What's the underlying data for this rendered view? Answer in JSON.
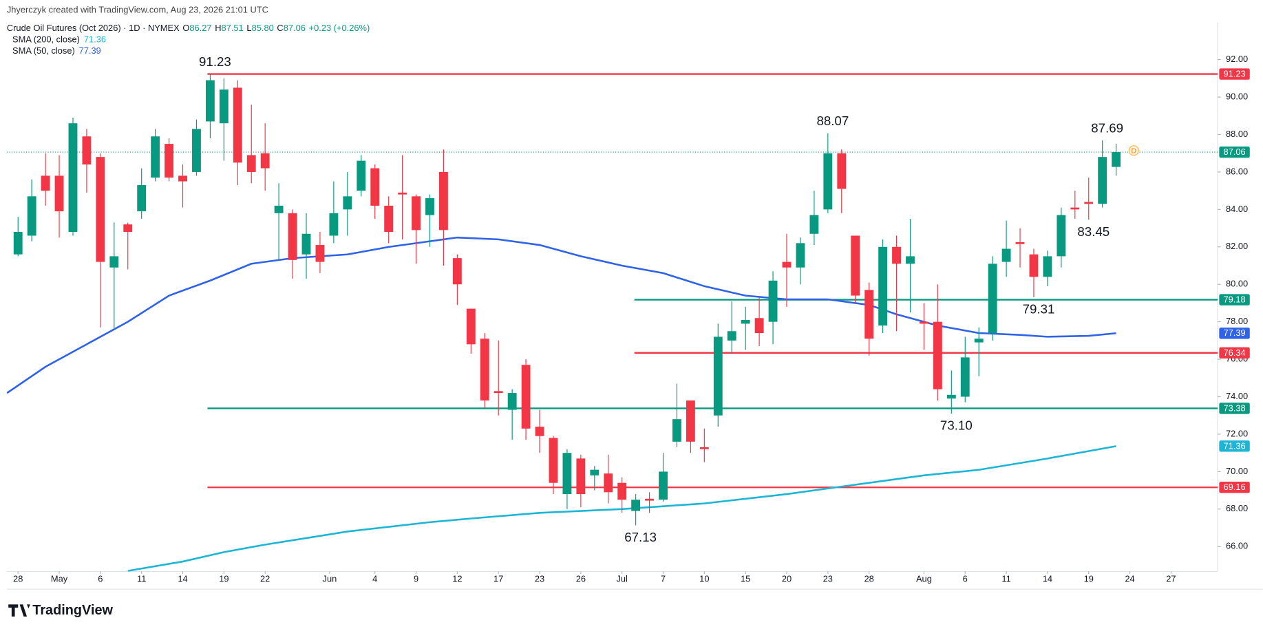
{
  "header": {
    "credit": "Jhyerczyk created with TradingView.com, Aug 23, 2026 21:01 UTC"
  },
  "legend": {
    "title": "Crude Oil Futures (Oct 2026) · 1D · NYMEX",
    "fields": [
      {
        "key": "O",
        "value": "86.27"
      },
      {
        "key": "H",
        "value": "87.51"
      },
      {
        "key": "L",
        "value": "85.80"
      },
      {
        "key": "C",
        "value": "87.06"
      }
    ],
    "change": "+0.23 (+0.26%)"
  },
  "chart_data": {
    "type": "candlestick",
    "up_color": "#089981",
    "down_color": "#f23645",
    "open": [
      81.6,
      82.6,
      85.8,
      85.8,
      82.8,
      87.9,
      86.8,
      80.9,
      83.2,
      83.9,
      85.7,
      87.5,
      85.8,
      86.0,
      88.7,
      88.6,
      90.5,
      86.9,
      87.0,
      83.8,
      83.8,
      81.6,
      82.1,
      82.6,
      84.0,
      85.0,
      86.2,
      84.2,
      84.9,
      84.7,
      83.7,
      86.0,
      81.4,
      78.7,
      77.1,
      74.3,
      73.3,
      75.7,
      72.4,
      71.8,
      68.8,
      70.7,
      69.8,
      69.9,
      69.4,
      67.9,
      68.55,
      68.5,
      71.6,
      73.8,
      71.3,
      73.0,
      77.0,
      77.9,
      78.2,
      78.0,
      81.2,
      80.9,
      82.7,
      84.0,
      87.0,
      82.6,
      79.7,
      77.8,
      82.0,
      81.1,
      78.0,
      78.0,
      73.9,
      74.0,
      76.9,
      77.4,
      81.2,
      82.25,
      81.6,
      80.4,
      81.5,
      84.1,
      84.4,
      84.3,
      86.27
    ],
    "high": [
      83.6,
      85.6,
      87.0,
      86.9,
      88.9,
      88.3,
      87.0,
      83.3,
      83.3,
      86.2,
      88.3,
      87.8,
      86.4,
      88.8,
      91.23,
      91.0,
      90.9,
      89.6,
      88.6,
      85.4,
      84.0,
      83.8,
      82.8,
      85.5,
      86.0,
      86.9,
      86.4,
      84.7,
      86.9,
      84.8,
      84.8,
      87.2,
      81.6,
      78.7,
      77.4,
      77.0,
      74.4,
      76.0,
      73.3,
      71.9,
      71.2,
      70.9,
      70.3,
      70.9,
      69.7,
      68.8,
      68.9,
      71.0,
      74.7,
      73.8,
      72.3,
      77.9,
      79.1,
      78.8,
      79.3,
      80.7,
      82.7,
      82.5,
      85.0,
      88.07,
      87.2,
      82.6,
      80.1,
      82.4,
      82.6,
      83.5,
      79.0,
      80.0,
      75.4,
      77.2,
      77.7,
      81.5,
      83.4,
      83.0,
      81.9,
      81.8,
      84.1,
      85.0,
      85.7,
      87.69,
      87.51
    ],
    "low": [
      81.5,
      82.3,
      84.2,
      82.5,
      82.6,
      84.9,
      77.7,
      77.6,
      80.8,
      83.5,
      85.5,
      85.5,
      84.1,
      85.8,
      87.8,
      86.6,
      85.3,
      85.4,
      85.0,
      81.3,
      80.3,
      80.3,
      80.6,
      82.2,
      82.6,
      84.7,
      83.5,
      82.2,
      82.4,
      81.1,
      82.0,
      81.0,
      78.9,
      76.3,
      73.4,
      73.0,
      71.7,
      71.7,
      71.0,
      68.8,
      68.0,
      68.1,
      69.0,
      68.3,
      67.8,
      67.13,
      67.8,
      68.4,
      71.3,
      71.0,
      70.5,
      72.4,
      76.3,
      76.5,
      76.7,
      76.8,
      78.8,
      80.0,
      82.1,
      83.8,
      83.8,
      79.0,
      76.2,
      77.4,
      77.5,
      78.5,
      76.5,
      73.8,
      73.1,
      73.7,
      75.1,
      77.0,
      80.4,
      80.9,
      79.31,
      79.9,
      80.9,
      83.5,
      83.45,
      84.1,
      85.8
    ],
    "close": [
      82.8,
      84.7,
      85.0,
      83.9,
      88.6,
      86.4,
      81.2,
      81.5,
      82.8,
      85.3,
      87.9,
      85.7,
      85.5,
      88.3,
      90.9,
      90.4,
      86.5,
      86.0,
      86.2,
      84.2,
      81.3,
      82.7,
      81.2,
      83.8,
      84.7,
      86.6,
      84.2,
      82.8,
      84.8,
      82.9,
      84.6,
      82.9,
      80.0,
      76.8,
      73.8,
      74.2,
      74.2,
      72.3,
      71.9,
      69.4,
      71.0,
      68.8,
      70.1,
      68.9,
      68.5,
      68.5,
      68.45,
      70.0,
      72.8,
      71.6,
      71.2,
      77.2,
      77.5,
      78.1,
      77.4,
      80.2,
      80.9,
      82.2,
      83.7,
      87.0,
      85.1,
      79.4,
      77.1,
      82.0,
      81.1,
      81.5,
      77.9,
      74.4,
      74.1,
      76.1,
      77.1,
      81.1,
      81.9,
      82.15,
      80.4,
      81.5,
      83.7,
      84.0,
      84.3,
      86.8,
      87.06
    ],
    "series": [
      {
        "name": "SMA (200, close)",
        "color": "#1cb5d6",
        "x": [
          8,
          12,
          15,
          18,
          24,
          30,
          33,
          38,
          44,
          50,
          56,
          59,
          62,
          66,
          70,
          75,
          80
        ],
        "values": [
          64.7,
          65.2,
          65.7,
          66.1,
          66.8,
          67.3,
          67.5,
          67.8,
          68.0,
          68.3,
          68.8,
          69.1,
          69.4,
          69.8,
          70.1,
          70.7,
          71.36
        ]
      },
      {
        "name": "SMA (50, close)",
        "color": "#2e62e8",
        "x": [
          -0.8,
          2,
          5,
          8,
          11,
          14,
          17,
          20,
          24,
          27,
          30,
          32,
          35,
          38,
          41,
          44,
          47,
          50,
          53,
          56,
          59,
          62,
          64,
          67,
          70,
          73,
          75,
          78,
          80
        ],
        "values": [
          74.2,
          75.6,
          76.8,
          78.0,
          79.4,
          80.2,
          81.1,
          81.4,
          81.6,
          82.0,
          82.3,
          82.5,
          82.4,
          82.1,
          81.5,
          81.0,
          80.6,
          79.9,
          79.4,
          79.2,
          79.2,
          78.9,
          78.4,
          77.8,
          77.4,
          77.3,
          77.2,
          77.25,
          77.39
        ]
      }
    ],
    "levels": [
      {
        "value": 91.23,
        "color": "#f23645",
        "from": 13.8
      },
      {
        "value": 79.18,
        "color": "#089981",
        "from": 44.9
      },
      {
        "value": 76.34,
        "color": "#f23645",
        "from": 44.9
      },
      {
        "value": 73.38,
        "color": "#089981",
        "from": 13.8
      },
      {
        "value": 69.16,
        "color": "#f23645",
        "from": 13.8
      }
    ],
    "annotations": [
      {
        "index": 14,
        "value": 91.23,
        "label": "91.23",
        "position": "above"
      },
      {
        "index": 59,
        "value": 88.07,
        "label": "88.07",
        "position": "above"
      },
      {
        "index": 79,
        "value": 87.69,
        "label": "87.69",
        "position": "above"
      },
      {
        "index": 78,
        "value": 83.45,
        "label": "83.45",
        "position": "below"
      },
      {
        "index": 74,
        "value": 79.31,
        "label": "79.31",
        "position": "below"
      },
      {
        "index": 68,
        "value": 73.1,
        "label": "73.10",
        "position": "below"
      },
      {
        "index": 45,
        "value": 67.13,
        "label": "67.13",
        "position": "below"
      }
    ],
    "last_price": 87.06,
    "marker": "D",
    "xlim": [
      -0.82,
      87.39
    ],
    "ylim": [
      64.67,
      93.98
    ],
    "xticks": [
      {
        "value": 0,
        "label": "28"
      },
      {
        "value": 3,
        "label": "May"
      },
      {
        "value": 6,
        "label": "6"
      },
      {
        "value": 9,
        "label": "11"
      },
      {
        "value": 12,
        "label": "14"
      },
      {
        "value": 15,
        "label": "19"
      },
      {
        "value": 18,
        "label": "22"
      },
      {
        "value": 22.7,
        "label": "Jun"
      },
      {
        "value": 26,
        "label": "4"
      },
      {
        "value": 29,
        "label": "9"
      },
      {
        "value": 32,
        "label": "12"
      },
      {
        "value": 35,
        "label": "17"
      },
      {
        "value": 38,
        "label": "23"
      },
      {
        "value": 41,
        "label": "26"
      },
      {
        "value": 44,
        "label": "Jul"
      },
      {
        "value": 47,
        "label": "7"
      },
      {
        "value": 50,
        "label": "10"
      },
      {
        "value": 53,
        "label": "15"
      },
      {
        "value": 56,
        "label": "20"
      },
      {
        "value": 59,
        "label": "23"
      },
      {
        "value": 62,
        "label": "28"
      },
      {
        "value": 66,
        "label": "Aug"
      },
      {
        "value": 69,
        "label": "6"
      },
      {
        "value": 72,
        "label": "11"
      },
      {
        "value": 75,
        "label": "14"
      },
      {
        "value": 78,
        "label": "19"
      },
      {
        "value": 81,
        "label": "24"
      },
      {
        "value": 84,
        "label": "27"
      }
    ],
    "yticks": [
      {
        "value": 66,
        "label": "66.00"
      },
      {
        "value": 68,
        "label": "68.00"
      },
      {
        "value": 70,
        "label": "70.00"
      },
      {
        "value": 72,
        "label": "72.00"
      },
      {
        "value": 74,
        "label": "74.00"
      },
      {
        "value": 76,
        "label": "76.00"
      },
      {
        "value": 78,
        "label": "78.00"
      },
      {
        "value": 80,
        "label": "80.00"
      },
      {
        "value": 82,
        "label": "82.00"
      },
      {
        "value": 84,
        "label": "84.00"
      },
      {
        "value": 86,
        "label": "86.00"
      },
      {
        "value": 88,
        "label": "88.00"
      },
      {
        "value": 90,
        "label": "90.00"
      },
      {
        "value": 92,
        "label": "92.00"
      }
    ]
  },
  "footer": {
    "brand": "TradingView"
  }
}
